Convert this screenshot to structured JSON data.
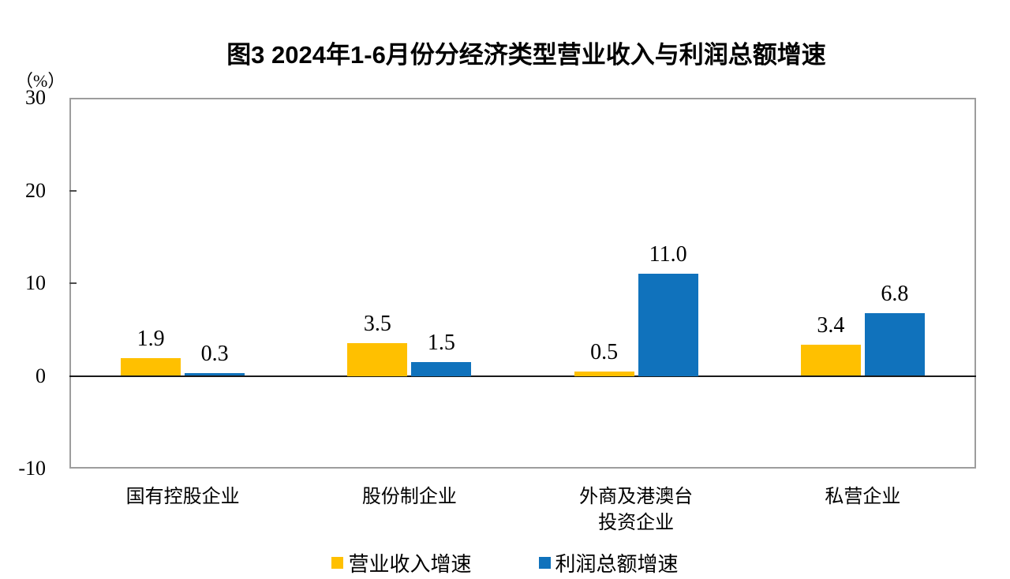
{
  "chart_data": {
    "type": "bar",
    "title": "图3 2024年1-6月份分经济类型营业收入与利润总额增速",
    "unit_label": "（%）",
    "categories": [
      "国有控股企业",
      "股份制企业",
      "外商及港澳台\n投资企业",
      "私营企业"
    ],
    "series": [
      {
        "name": "营业收入增速",
        "color": "#FFC000",
        "values": [
          1.9,
          3.5,
          0.5,
          3.4
        ]
      },
      {
        "name": "利润总额增速",
        "color": "#1072BC",
        "values": [
          0.3,
          1.5,
          11.0,
          6.8
        ]
      }
    ],
    "xlabel": "",
    "ylabel": "（%）",
    "ylim": [
      -10,
      30
    ],
    "yticks": [
      30,
      20,
      10,
      0,
      -10
    ],
    "grid": false,
    "legend_position": "bottom",
    "value_labels": "one_decimal_above_bar"
  }
}
